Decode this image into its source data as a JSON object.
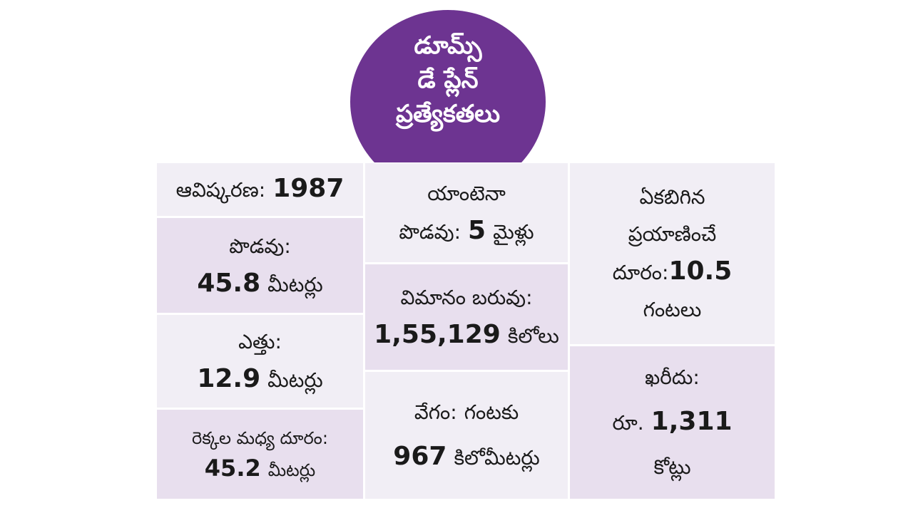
{
  "header": {
    "title_lines": [
      "డూమ్స్",
      "డే ప్లేన్",
      "ప్రత్యేకతలు"
    ]
  },
  "colors": {
    "header_purple": "#6d3491",
    "cell_light": "#f1eef5",
    "cell_dark": "#e8dfee"
  },
  "specs": {
    "invention": {
      "label": "ఆవిష్కరణ:",
      "value": "1987"
    },
    "length": {
      "label": "పొడవు:",
      "value": "45.8",
      "unit": "మీటర్లు"
    },
    "height": {
      "label": "ఎత్తు:",
      "value": "12.9",
      "unit": "మీటర్లు"
    },
    "wingspan": {
      "label": "రెక్కల మధ్య దూరం:",
      "value": "45.2",
      "unit": "మీటర్లు"
    },
    "antenna": {
      "label": "యాంటెనా",
      "label2": "పొడవు:",
      "value": "5",
      "unit": "మైళ్లు"
    },
    "weight": {
      "label": "విమానం బరువు:",
      "value": "1,55,129",
      "unit": "కిలోలు"
    },
    "speed": {
      "label": "వేగం:",
      "label_tail": "గంటకు",
      "value": "967",
      "unit": "కిలోమీటర్లు"
    },
    "range": {
      "line1": "ఏకబిగిన",
      "line2": "ప్రయాణించే",
      "label": "దూరం:",
      "value": "10.5",
      "unit": "గంటలు"
    },
    "cost": {
      "label": "ఖరీదు:",
      "prefix": "రూ.",
      "value": "1,311",
      "unit": "కోట్లు"
    }
  }
}
